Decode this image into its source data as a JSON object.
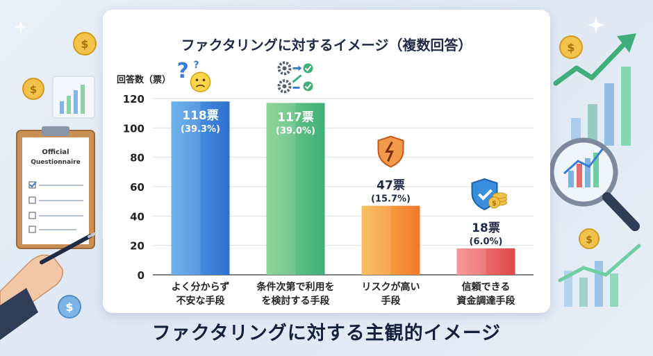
{
  "chart_data": {
    "type": "bar",
    "title": "ファクタリングに対するイメージ（複数回答）",
    "ylabel": "回答数（票）",
    "ylim": [
      0,
      120
    ],
    "yticks": [
      0,
      20,
      40,
      60,
      80,
      100,
      120
    ],
    "grid": true,
    "categories": [
      [
        "よく分からず",
        "不安な手段"
      ],
      [
        "条件次第で利用を",
        "を検討する手段"
      ],
      [
        "リスクが高い",
        "手段"
      ],
      [
        "信頼できる",
        "資金調達手段"
      ]
    ],
    "values": [
      118,
      117,
      47,
      18
    ],
    "value_labels": [
      "118票",
      "117票",
      "47票",
      "18票"
    ],
    "percent_labels": [
      "(39.3%)",
      "(39.0%)",
      "(15.7%)",
      "(6.0%)"
    ],
    "colors": [
      [
        "#5aa8e8",
        "#2f6fd0"
      ],
      [
        "#7fd08a",
        "#3fae7a"
      ],
      [
        "#f9b84a",
        "#f07a2e"
      ],
      [
        "#f58a8a",
        "#e04848"
      ]
    ]
  },
  "decor": {
    "clipboard_title_line1": "Official",
    "clipboard_title_line2": "Questionnaire",
    "coin_symbol": "$"
  },
  "footer": {
    "title": "ファクタリングに対する主観的イメージ"
  }
}
